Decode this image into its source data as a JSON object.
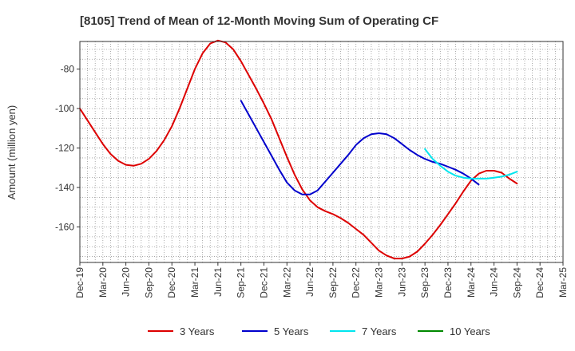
{
  "chart_data": {
    "type": "line",
    "title": "[8105]  Trend of Mean of 12-Month Moving Sum of Operating CF",
    "xlabel": "",
    "ylabel": "Amount (million yen)",
    "ylim": [
      -178,
      -66
    ],
    "y_ticks": [
      -80,
      -100,
      -120,
      -140,
      -160
    ],
    "grid": true,
    "legend_position": "bottom",
    "x_tick_labels": [
      "Dec-19",
      "Mar-20",
      "Jun-20",
      "Sep-20",
      "Dec-20",
      "Mar-21",
      "Jun-21",
      "Sep-21",
      "Dec-21",
      "Mar-22",
      "Jun-22",
      "Sep-22",
      "Dec-22",
      "Mar-23",
      "Jun-23",
      "Sep-23",
      "Dec-23",
      "Mar-24",
      "Jun-24",
      "Sep-24",
      "Dec-24",
      "Mar-25"
    ],
    "x_start": "Dec-19",
    "x_end": "Mar-25",
    "months_total": 63,
    "series": [
      {
        "name": "3 Years",
        "color": "#dd0000",
        "start_month": 0,
        "values": [
          -100,
          -106,
          -112,
          -118,
          -123,
          -126.5,
          -128.5,
          -129,
          -128,
          -125.5,
          -121.5,
          -116,
          -109,
          -100,
          -90,
          -80,
          -72,
          -67,
          -65.5,
          -66.5,
          -70,
          -76,
          -83,
          -90,
          -97.5,
          -105.5,
          -115,
          -124.5,
          -133.5,
          -141,
          -146.5,
          -150,
          -152,
          -153.5,
          -155.5,
          -158,
          -161,
          -164,
          -168,
          -172,
          -174.5,
          -176,
          -176,
          -175,
          -172.5,
          -168.5,
          -164,
          -159,
          -153.5,
          -148,
          -142,
          -136.5,
          -133,
          -131.5,
          -131.5,
          -132.5,
          -135.5,
          -138
        ]
      },
      {
        "name": "5 Years",
        "color": "#0000cc",
        "start_month": 21,
        "values": [
          -96,
          -103,
          -110,
          -117,
          -124,
          -131,
          -137.5,
          -141.5,
          -143.5,
          -143.5,
          -141.5,
          -137,
          -132.5,
          -128,
          -123.5,
          -118.5,
          -115,
          -113,
          -112.5,
          -113,
          -115,
          -118,
          -121,
          -123.5,
          -125.5,
          -127,
          -128,
          -129.5,
          -131,
          -133,
          -135.5,
          -138.5
        ]
      },
      {
        "name": "7 Years",
        "color": "#00e5ee",
        "start_month": 45,
        "values": [
          -120.5,
          -125.5,
          -129,
          -132,
          -134,
          -135,
          -135.5,
          -135.5,
          -135.5,
          -135,
          -134.5,
          -133.5,
          -132
        ]
      },
      {
        "name": "10 Years",
        "color": "#008800",
        "start_month": 0,
        "values": []
      }
    ]
  }
}
